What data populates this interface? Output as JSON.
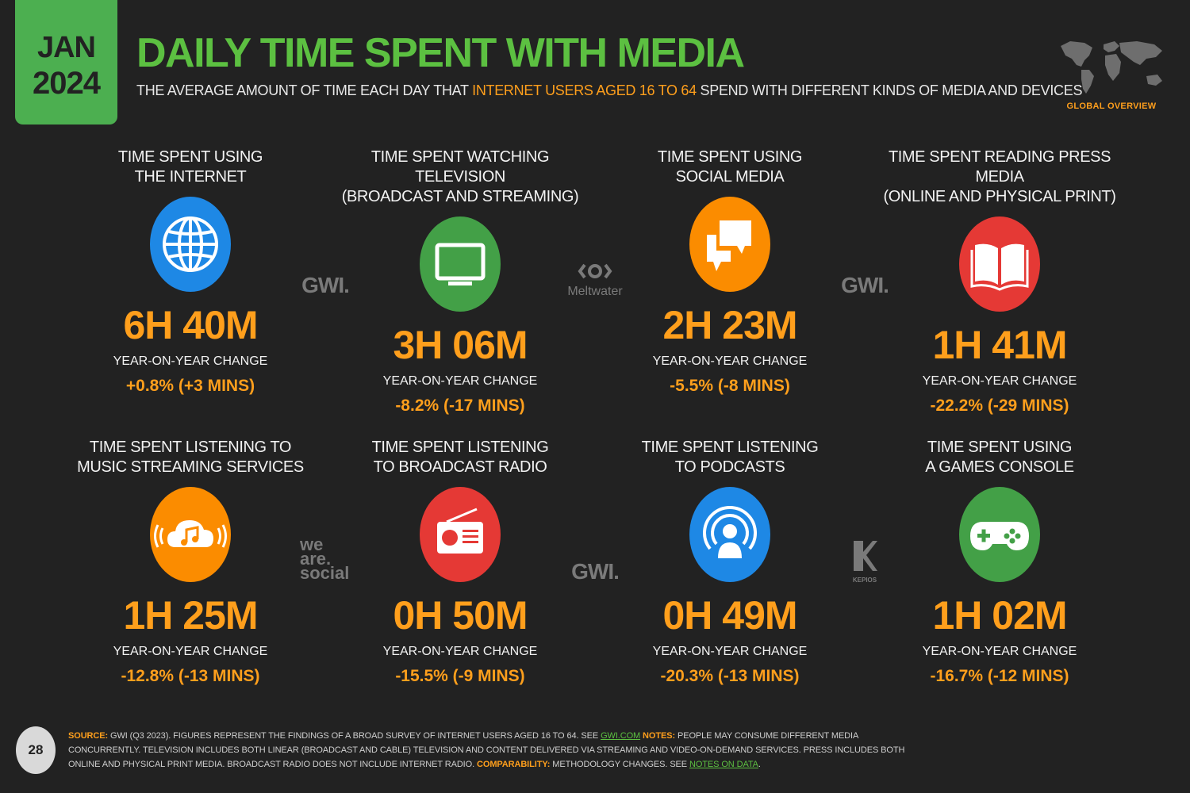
{
  "header": {
    "badge_month": "JAN",
    "badge_year": "2024",
    "title": "DAILY TIME SPENT WITH MEDIA",
    "subtitle_before": "THE AVERAGE AMOUNT OF TIME EACH DAY THAT ",
    "subtitle_highlight": "INTERNET USERS AGED 16 TO 64",
    "subtitle_after": " SPEND WITH DIFFERENT KINDS OF MEDIA AND DEVICES",
    "global_label": "GLOBAL OVERVIEW"
  },
  "colors": {
    "background": "#222222",
    "brand_green": "#5cc041",
    "accent_orange": "#ff9f1c",
    "icon_blue": "#1e88e5",
    "icon_green": "#43a047",
    "icon_orange": "#fb8c00",
    "icon_red": "#e53935"
  },
  "yoy_label": "YEAR-ON-YEAR CHANGE",
  "cards": [
    {
      "label": "TIME SPENT USING\nTHE INTERNET",
      "value": "6H 40M",
      "yoy": "+0.8% (+3 MINS)",
      "icon": "globe-icon"
    },
    {
      "label": "TIME SPENT WATCHING TELEVISION\n(BROADCAST AND STREAMING)",
      "value": "3H 06M",
      "yoy": "-8.2% (-17 MINS)",
      "icon": "television-icon"
    },
    {
      "label": "TIME SPENT USING\nSOCIAL MEDIA",
      "value": "2H 23M",
      "yoy": "-5.5% (-8 MINS)",
      "icon": "speech-bubbles-icon"
    },
    {
      "label": "TIME SPENT READING PRESS MEDIA\n(ONLINE AND PHYSICAL PRINT)",
      "value": "1H 41M",
      "yoy": "-22.2% (-29 MINS)",
      "icon": "open-book-icon"
    },
    {
      "label": "TIME SPENT LISTENING TO\nMUSIC STREAMING SERVICES",
      "value": "1H 25M",
      "yoy": "-12.8% (-13 MINS)",
      "icon": "music-cloud-icon"
    },
    {
      "label": "TIME SPENT LISTENING\nTO BROADCAST RADIO",
      "value": "0H 50M",
      "yoy": "-15.5% (-9 MINS)",
      "icon": "radio-icon"
    },
    {
      "label": "TIME SPENT LISTENING\nTO PODCASTS",
      "value": "0H 49M",
      "yoy": "-20.3% (-13 MINS)",
      "icon": "podcast-icon"
    },
    {
      "label": "TIME SPENT USING\nA GAMES CONSOLE",
      "value": "1H 02M",
      "yoy": "-16.7% (-12 MINS)",
      "icon": "gamepad-icon"
    }
  ],
  "logos": {
    "gwi": "GWI.",
    "meltwater": "Meltwater",
    "wearesocial_1": "we",
    "wearesocial_2": "are.",
    "wearesocial_3": "social",
    "kepios": "KEPIOS"
  },
  "footer": {
    "page_number": "28",
    "source_key": "SOURCE:",
    "source_text": " GWI (Q3 2023). FIGURES REPRESENT THE FINDINGS OF A BROAD SURVEY OF INTERNET USERS AGED 16 TO 64. SEE ",
    "source_link": "GWI.COM",
    "notes_key": " NOTES:",
    "notes_text": " PEOPLE MAY CONSUME DIFFERENT MEDIA CONCURRENTLY. TELEVISION INCLUDES BOTH LINEAR (BROADCAST AND CABLE) TELEVISION AND CONTENT DELIVERED VIA STREAMING AND VIDEO-ON-DEMAND SERVICES. PRESS INCLUDES BOTH ONLINE AND PHYSICAL PRINT MEDIA. BROADCAST RADIO DOES NOT INCLUDE INTERNET RADIO. ",
    "comparability_key": "COMPARABILITY:",
    "comparability_text": " METHODOLOGY CHANGES. SEE ",
    "notes_link": "NOTES ON DATA",
    "end": "."
  }
}
